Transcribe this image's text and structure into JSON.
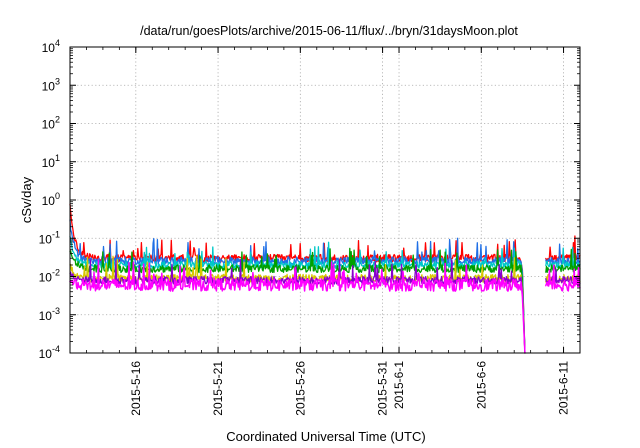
{
  "chart_data": {
    "type": "line",
    "title": "/data/run/goesPlots/archive/2015-06-11/flux/../bryn/31daysMoon.plot",
    "xlabel": "Coordinated Universal Time (UTC)",
    "ylabel": "cSv/day",
    "yscale": "log",
    "ylim": [
      0.0001,
      10000
    ],
    "xlim_days_from_2015_05_12": [
      0,
      31
    ],
    "grid": true,
    "y_ticks": [
      {
        "value": 0.0001,
        "base": "10",
        "exp": "-4"
      },
      {
        "value": 0.001,
        "base": "10",
        "exp": "-3"
      },
      {
        "value": 0.01,
        "base": "10",
        "exp": "-2"
      },
      {
        "value": 0.1,
        "base": "10",
        "exp": "-1"
      },
      {
        "value": 1,
        "base": "10",
        "exp": "0"
      },
      {
        "value": 10,
        "base": "10",
        "exp": "1"
      },
      {
        "value": 100,
        "base": "10",
        "exp": "2"
      },
      {
        "value": 1000,
        "base": "10",
        "exp": "3"
      },
      {
        "value": 10000,
        "base": "10",
        "exp": "4"
      }
    ],
    "x_ticks": [
      {
        "day": 4,
        "label": "2015-5-16"
      },
      {
        "day": 9,
        "label": "2015-5-21"
      },
      {
        "day": 14,
        "label": "2015-5-26"
      },
      {
        "day": 19,
        "label": "2015-5-31"
      },
      {
        "day": 20,
        "label": "2015-6-1"
      },
      {
        "day": 25,
        "label": "2015-6-6"
      },
      {
        "day": 30,
        "label": "2015-6-11"
      }
    ],
    "data_gap_days": [
      27.7,
      28.9
    ],
    "series": [
      {
        "name": "series-red",
        "color": "#ff0000",
        "baseline": 0.03,
        "start_peak": 0.75
      },
      {
        "name": "series-blue",
        "color": "#1f6fe6",
        "baseline": 0.026,
        "start_peak": 0.3
      },
      {
        "name": "series-cyan",
        "color": "#00c8c8",
        "baseline": 0.02,
        "start_peak": 0.1
      },
      {
        "name": "series-green",
        "color": "#00a000",
        "baseline": 0.016,
        "start_peak": 0.05
      },
      {
        "name": "series-yellow",
        "color": "#d8c800",
        "baseline": 0.009,
        "start_peak": 0.02
      },
      {
        "name": "series-purple",
        "color": "#8800cc",
        "baseline": 0.008,
        "start_peak": 0.012
      },
      {
        "name": "series-magenta",
        "color": "#ff00ff",
        "baseline": 0.006,
        "start_peak": 0.009
      }
    ]
  }
}
